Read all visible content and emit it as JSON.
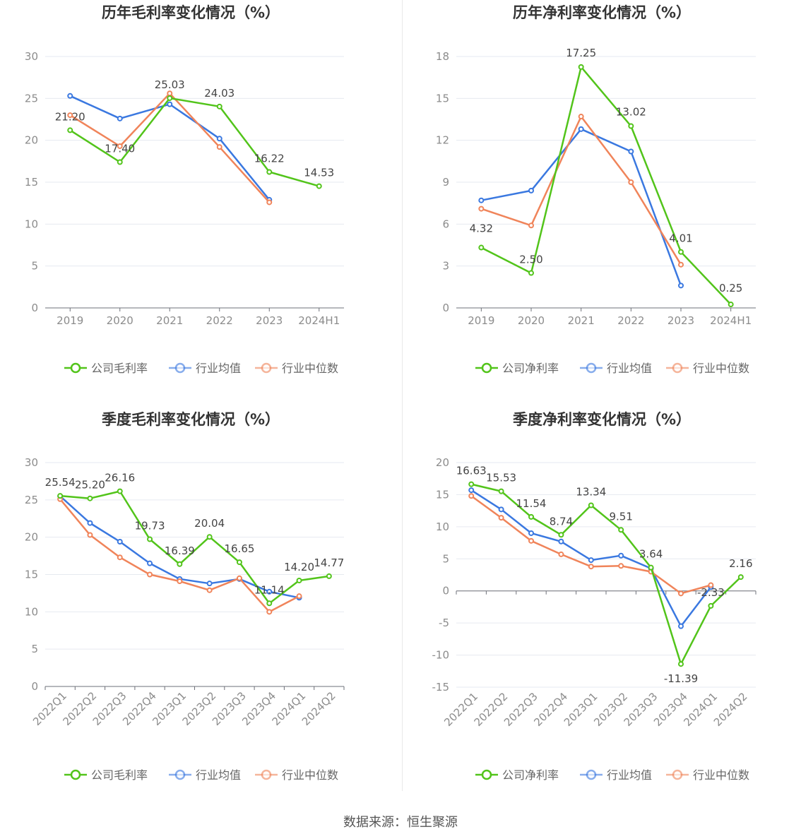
{
  "colors": {
    "company": "#52c41a",
    "industry_avg": "#3a78e0",
    "industry_median": "#f0845a"
  },
  "legend_labels": {
    "industry_avg": "行业均值",
    "industry_median": "行业中位数"
  },
  "source": "数据来源：恒生聚源",
  "chart_data": [
    {
      "type": "line",
      "title": "历年毛利率变化情况（%）",
      "categories": [
        "2019",
        "2020",
        "2021",
        "2022",
        "2023",
        "2024H1"
      ],
      "ylim": [
        0,
        30
      ],
      "yticks": [
        0,
        5,
        10,
        15,
        20,
        25,
        30
      ],
      "series": [
        {
          "name": "公司毛利率",
          "key": "company",
          "values": [
            21.2,
            17.4,
            25.03,
            24.03,
            16.22,
            14.53
          ],
          "labels": [
            "21.20",
            "17.40",
            "25.03",
            "24.03",
            "16.22",
            "14.53"
          ]
        },
        {
          "name": "行业均值",
          "key": "industry_avg",
          "values": [
            25.3,
            22.6,
            24.3,
            20.2,
            12.9,
            null
          ]
        },
        {
          "name": "行业中位数",
          "key": "industry_median",
          "values": [
            23.0,
            19.3,
            25.6,
            19.2,
            12.6,
            null
          ]
        }
      ]
    },
    {
      "type": "line",
      "title": "历年净利率变化情况（%）",
      "categories": [
        "2019",
        "2020",
        "2021",
        "2022",
        "2023",
        "2024H1"
      ],
      "ylim": [
        0,
        18
      ],
      "yticks": [
        0,
        3,
        6,
        9,
        12,
        15,
        18
      ],
      "series": [
        {
          "name": "公司净利率",
          "key": "company",
          "values": [
            4.32,
            2.5,
            17.25,
            13.02,
            4.01,
            0.25
          ],
          "labels": [
            "4.32",
            "2.50",
            "17.25",
            "13.02",
            "4.01",
            "0.25"
          ]
        },
        {
          "name": "行业均值",
          "key": "industry_avg",
          "values": [
            7.7,
            8.4,
            12.8,
            11.2,
            1.6,
            null
          ]
        },
        {
          "name": "行业中位数",
          "key": "industry_median",
          "values": [
            7.1,
            5.9,
            13.7,
            9.0,
            3.1,
            null
          ]
        }
      ]
    },
    {
      "type": "line",
      "title": "季度毛利率变化情况（%）",
      "categories": [
        "2022Q1",
        "2022Q2",
        "2022Q3",
        "2022Q4",
        "2023Q1",
        "2023Q2",
        "2023Q3",
        "2023Q4",
        "2024Q1",
        "2024Q2"
      ],
      "ylim": [
        0,
        30
      ],
      "yticks": [
        0,
        5,
        10,
        15,
        20,
        25,
        30
      ],
      "series": [
        {
          "name": "公司毛利率",
          "key": "company",
          "values": [
            25.54,
            25.2,
            26.16,
            19.73,
            16.39,
            20.04,
            16.65,
            11.14,
            14.2,
            14.77
          ],
          "labels": [
            "25.54",
            "25.20",
            "26.16",
            "19.73",
            "16.39",
            "20.04",
            "16.65",
            "11.14",
            "14.20",
            "14.77"
          ]
        },
        {
          "name": "行业均值",
          "key": "industry_avg",
          "values": [
            25.5,
            21.9,
            19.4,
            16.5,
            14.4,
            13.8,
            14.4,
            12.7,
            11.9,
            null
          ]
        },
        {
          "name": "行业中位数",
          "key": "industry_median",
          "values": [
            25.1,
            20.3,
            17.3,
            15.0,
            14.1,
            12.9,
            14.5,
            10.0,
            12.1,
            null
          ]
        }
      ]
    },
    {
      "type": "line",
      "title": "季度净利率变化情况（%）",
      "categories": [
        "2022Q1",
        "2022Q2",
        "2022Q3",
        "2022Q4",
        "2023Q1",
        "2023Q2",
        "2023Q3",
        "2023Q4",
        "2024Q1",
        "2024Q2"
      ],
      "ylim": [
        -15,
        20
      ],
      "yticks": [
        -15,
        -10,
        -5,
        0,
        5,
        10,
        15,
        20
      ],
      "series": [
        {
          "name": "公司净利率",
          "key": "company",
          "values": [
            16.63,
            15.53,
            11.54,
            8.74,
            13.34,
            9.51,
            3.64,
            -11.39,
            -2.33,
            2.16
          ],
          "labels": [
            "16.63",
            "15.53",
            "11.54",
            "8.74",
            "13.34",
            "9.51",
            "3.64",
            "-11.39",
            "-2.33",
            "2.16"
          ]
        },
        {
          "name": "行业均值",
          "key": "industry_avg",
          "values": [
            15.7,
            12.7,
            9.0,
            7.7,
            4.8,
            5.5,
            3.5,
            -5.5,
            0.6,
            null
          ]
        },
        {
          "name": "行业中位数",
          "key": "industry_median",
          "values": [
            14.8,
            11.4,
            7.8,
            5.7,
            3.8,
            3.9,
            3.0,
            -0.4,
            0.9,
            null
          ]
        }
      ]
    }
  ]
}
